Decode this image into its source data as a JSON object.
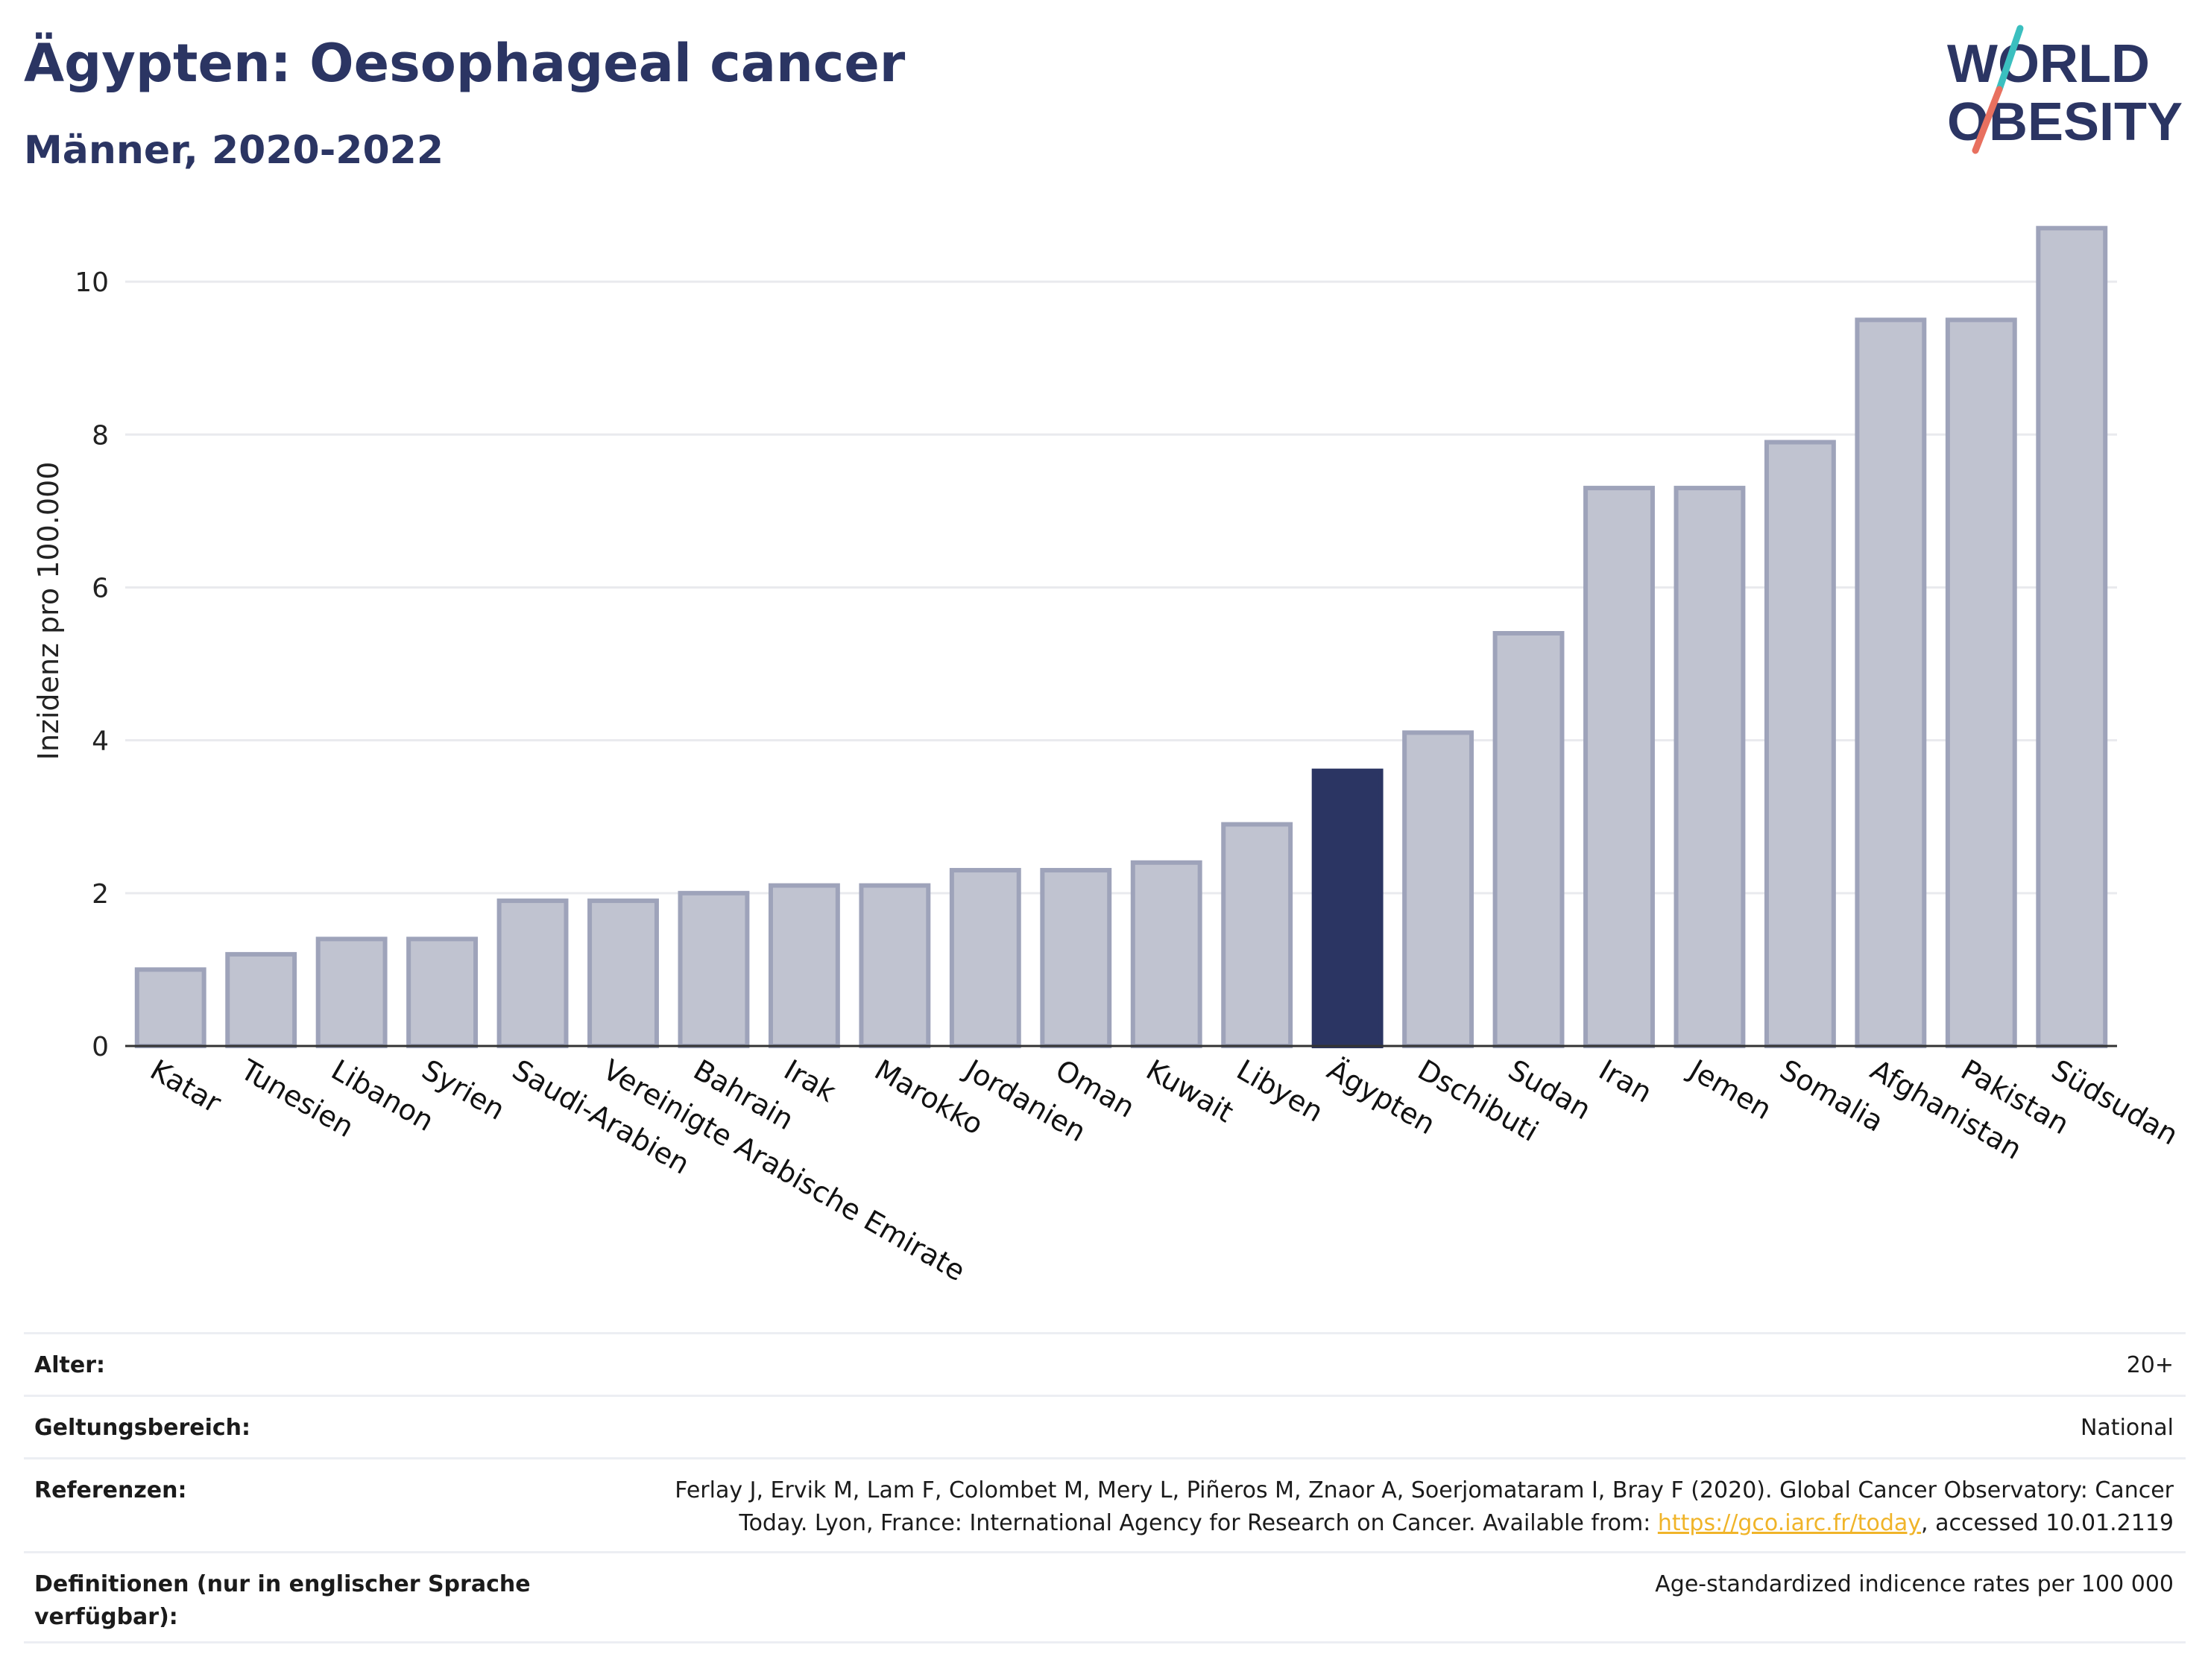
{
  "header": {
    "title": "Ägypten: Oesophageal cancer",
    "subtitle": "Männer, 2020-2022"
  },
  "logo": {
    "line1": "WORLD",
    "line2": "OBESITY",
    "colors": {
      "text": "#2b3563",
      "slash_teal": "#3bbfbf",
      "slash_coral": "#e8705f"
    }
  },
  "colors": {
    "bar_default": "#c0c3d0",
    "bar_border": "#9ea3ba",
    "bar_highlight": "#2b3563",
    "grid": "#e9eaee",
    "axis": "#333333"
  },
  "chart_data": {
    "type": "bar",
    "ylabel": "Inzidenz pro 100.000",
    "ylim": [
      0,
      10.8
    ],
    "yticks": [
      0,
      2,
      4,
      6,
      8,
      10
    ],
    "grid": true,
    "highlight": "Ägypten",
    "categories": [
      "Katar",
      "Tunesien",
      "Libanon",
      "Syrien",
      "Saudi-Arabien",
      "Vereinigte Arabische Emirate",
      "Bahrain",
      "Irak",
      "Marokko",
      "Jordanien",
      "Oman",
      "Kuwait",
      "Libyen",
      "Ägypten",
      "Dschibuti",
      "Sudan",
      "Iran",
      "Jemen",
      "Somalia",
      "Afghanistan",
      "Pakistan",
      "Südsudan"
    ],
    "values": [
      1.0,
      1.2,
      1.4,
      1.4,
      1.9,
      1.9,
      2.0,
      2.1,
      2.1,
      2.3,
      2.3,
      2.4,
      2.9,
      3.6,
      4.1,
      5.4,
      7.3,
      7.3,
      7.9,
      9.5,
      9.5,
      10.7
    ]
  },
  "info": {
    "age_label": "Alter:",
    "age_value": "20+",
    "scope_label": "Geltungsbereich:",
    "scope_value": "National",
    "ref_label": "Referenzen:",
    "ref_text_1": "Ferlay J, Ervik M, Lam F, Colombet M, Mery L, Piñeros M, Znaor A, Soerjomataram I, Bray F (2020). Global Cancer Observatory: Cancer",
    "ref_text_2": "Today. Lyon, France: International Agency for Research on Cancer. Available from: ",
    "ref_link": "https://gco.iarc.fr/today",
    "ref_text_3": ", accessed 10.01.2119",
    "def_label": "Definitionen (nur in englischer Sprache verfügbar):",
    "def_value": "Age-standardized indicence rates per 100 000"
  }
}
